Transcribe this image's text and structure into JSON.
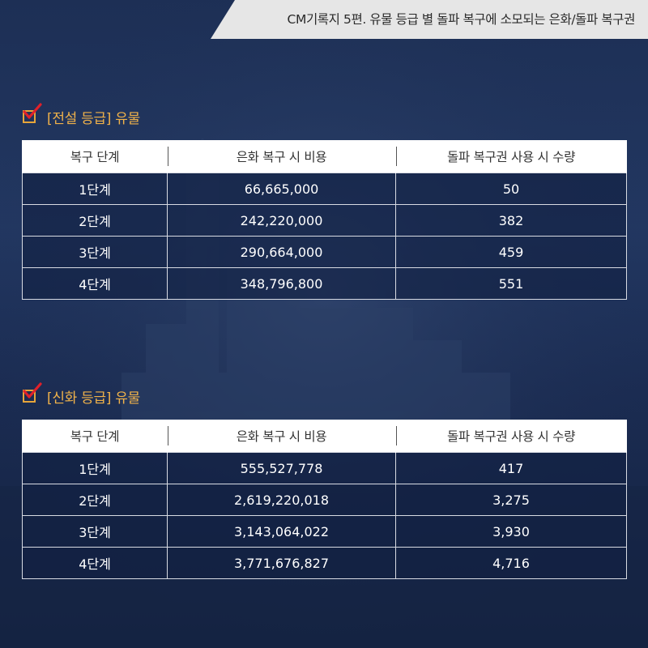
{
  "header": {
    "title": "CM기록지 5편. 유물 등급 별 돌파 복구에 소모되는 은화/돌파 복구권"
  },
  "colors": {
    "accent": "#f0b24a",
    "check_mark": "#e0202a",
    "background": "#1d2f55",
    "banner": "#e6e6e6"
  },
  "sections": [
    {
      "heading": "[전설 등급] 유물",
      "columns": [
        "복구 단계",
        "은화 복구 시 비용",
        "돌파 복구권 사용 시 수량"
      ],
      "rows": [
        [
          "1단계",
          "66,665,000",
          "50"
        ],
        [
          "2단계",
          "242,220,000",
          "382"
        ],
        [
          "3단계",
          "290,664,000",
          "459"
        ],
        [
          "4단계",
          "348,796,800",
          "551"
        ]
      ]
    },
    {
      "heading": "[신화 등급] 유물",
      "columns": [
        "복구 단계",
        "은화 복구 시 비용",
        "돌파 복구권 사용 시 수량"
      ],
      "rows": [
        [
          "1단계",
          "555,527,778",
          "417"
        ],
        [
          "2단계",
          "2,619,220,018",
          "3,275"
        ],
        [
          "3단계",
          "3,143,064,022",
          "3,930"
        ],
        [
          "4단계",
          "3,771,676,827",
          "4,716"
        ]
      ]
    }
  ]
}
